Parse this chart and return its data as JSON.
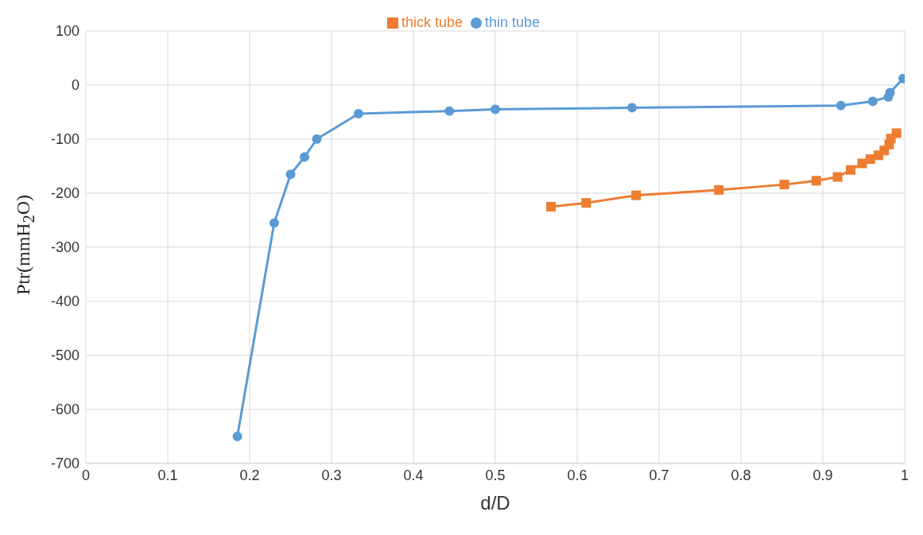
{
  "chart_data": {
    "type": "line",
    "xlabel": "d/D",
    "ylabel": "Ptr(mmH$_{2}$O)",
    "xlim": [
      0,
      1
    ],
    "xticks": [
      0,
      0.1,
      0.2,
      0.3,
      0.4,
      0.5,
      0.6,
      0.7,
      0.8,
      0.9,
      1
    ],
    "ylim": [
      -700,
      100
    ],
    "yticks": [
      -700,
      -600,
      -500,
      -400,
      -300,
      -200,
      -100,
      0,
      100
    ],
    "grid": true,
    "legend": "top",
    "line_style": "solid",
    "series": [
      {
        "name": "thin tube",
        "color": "#5b9bd5",
        "marker": "circle",
        "x": [
          0.185,
          0.23,
          0.25,
          0.267,
          0.282,
          0.333,
          0.444,
          0.5,
          0.667,
          0.922,
          0.961,
          0.98,
          0.982,
          0.998
        ],
        "values": [
          -650,
          -255,
          -165,
          -133,
          -100,
          -53,
          -48,
          -45,
          -42,
          -38,
          -30,
          -22,
          -14,
          12
        ]
      },
      {
        "name": "thick tube",
        "color": "#ed7d31",
        "marker": "square",
        "x": [
          0.568,
          0.611,
          0.672,
          0.773,
          0.853,
          0.892,
          0.918,
          0.934,
          0.948,
          0.958,
          0.968,
          0.975,
          0.981,
          0.983,
          0.99
        ],
        "values": [
          -225,
          -218,
          -204,
          -194,
          -184,
          -177,
          -170,
          -157,
          -145,
          -137,
          -130,
          -121,
          -110,
          -99,
          -89
        ]
      }
    ]
  }
}
